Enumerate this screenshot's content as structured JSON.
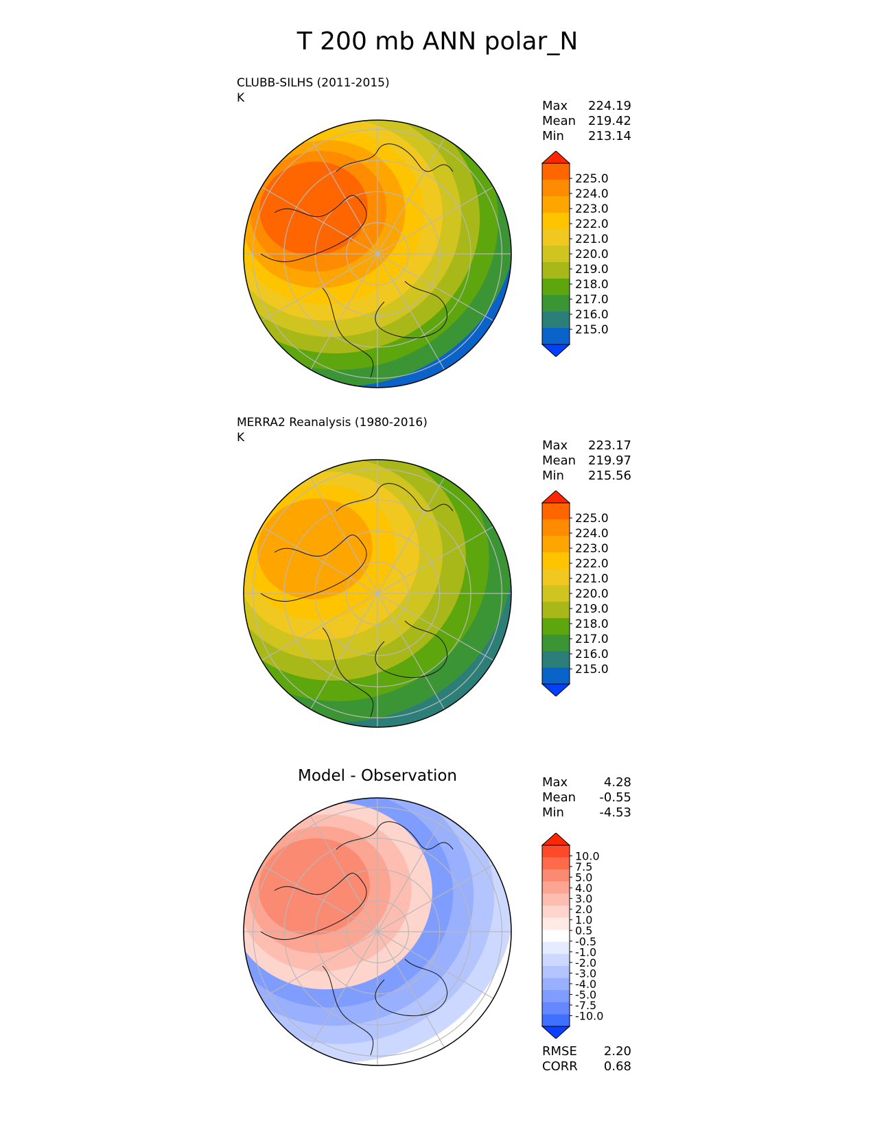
{
  "title": "T 200 mb ANN polar_N",
  "chart_data": [
    {
      "type": "heatmap",
      "title": "CLUBB-SILHS (2011-2015)",
      "units": "K",
      "stats": {
        "max_label": "Max",
        "max": "224.19",
        "mean_label": "Mean",
        "mean": "219.42",
        "min_label": "Min",
        "min": "213.14"
      },
      "colorbar": {
        "ticks": [
          "225.0",
          "224.0",
          "223.0",
          "222.0",
          "221.0",
          "220.0",
          "219.0",
          "218.0",
          "217.0",
          "216.0",
          "215.0"
        ],
        "colors": [
          "#ff2600",
          "#ff6600",
          "#ff8c00",
          "#ffa500",
          "#ffc400",
          "#f0c820",
          "#cfc420",
          "#a7b818",
          "#5ea60e",
          "#3c9535",
          "#2c7f78",
          "#0a63c8",
          "#0040ff"
        ]
      },
      "region_colors": [
        "#0a63c8",
        "#3c9535",
        "#5ea60e",
        "#a7b818",
        "#cfc420",
        "#f0c820",
        "#ffc400",
        "#ffa500",
        "#ff8c00",
        "#ff6600"
      ]
    },
    {
      "type": "heatmap",
      "title": "MERRA2 Reanalysis (1980-2016)",
      "units": "K",
      "stats": {
        "max_label": "Max",
        "max": "223.17",
        "mean_label": "Mean",
        "mean": "219.97",
        "min_label": "Min",
        "min": "215.56"
      },
      "colorbar": {
        "ticks": [
          "225.0",
          "224.0",
          "223.0",
          "222.0",
          "221.0",
          "220.0",
          "219.0",
          "218.0",
          "217.0",
          "216.0",
          "215.0"
        ],
        "colors": [
          "#ff2600",
          "#ff6600",
          "#ff8c00",
          "#ffa500",
          "#ffc400",
          "#f0c820",
          "#cfc420",
          "#a7b818",
          "#5ea60e",
          "#3c9535",
          "#2c7f78",
          "#0a63c8",
          "#0040ff"
        ]
      },
      "region_colors": [
        "#2c7f78",
        "#3c9535",
        "#5ea60e",
        "#a7b818",
        "#cfc420",
        "#f0c820",
        "#ffc400",
        "#ffa500"
      ]
    },
    {
      "type": "heatmap",
      "title": "Model - Observation",
      "stats": {
        "max_label": "Max",
        "max": "4.28",
        "mean_label": "Mean",
        "mean": "-0.55",
        "min_label": "Min",
        "min": "-4.53"
      },
      "colorbar": {
        "ticks": [
          "10.0",
          "7.5",
          "5.0",
          "4.0",
          "3.0",
          "2.0",
          "1.0",
          "0.5",
          "-0.5",
          "-1.0",
          "-2.0",
          "-3.0",
          "-4.0",
          "-5.0",
          "-7.5",
          "-10.0"
        ],
        "colors": [
          "#ff2600",
          "#ff4a2a",
          "#ff6a4a",
          "#fb8a72",
          "#fca592",
          "#fdbdb0",
          "#fed5cc",
          "#ffeae5",
          "#ffffff",
          "#e6ecff",
          "#ccd8ff",
          "#b3c4ff",
          "#99b0ff",
          "#7f9cff",
          "#6688ff",
          "#4070ff",
          "#0a40ff"
        ]
      },
      "region_colors": [
        "#ffffff",
        "#ccd8ff",
        "#b3c4ff",
        "#99b0ff",
        "#7f9cff",
        "#fed5cc",
        "#fdbdb0",
        "#fca592",
        "#fb8a72"
      ],
      "rmse_label": "RMSE",
      "rmse": "2.20",
      "corr_label": "CORR",
      "corr": "0.68"
    }
  ]
}
